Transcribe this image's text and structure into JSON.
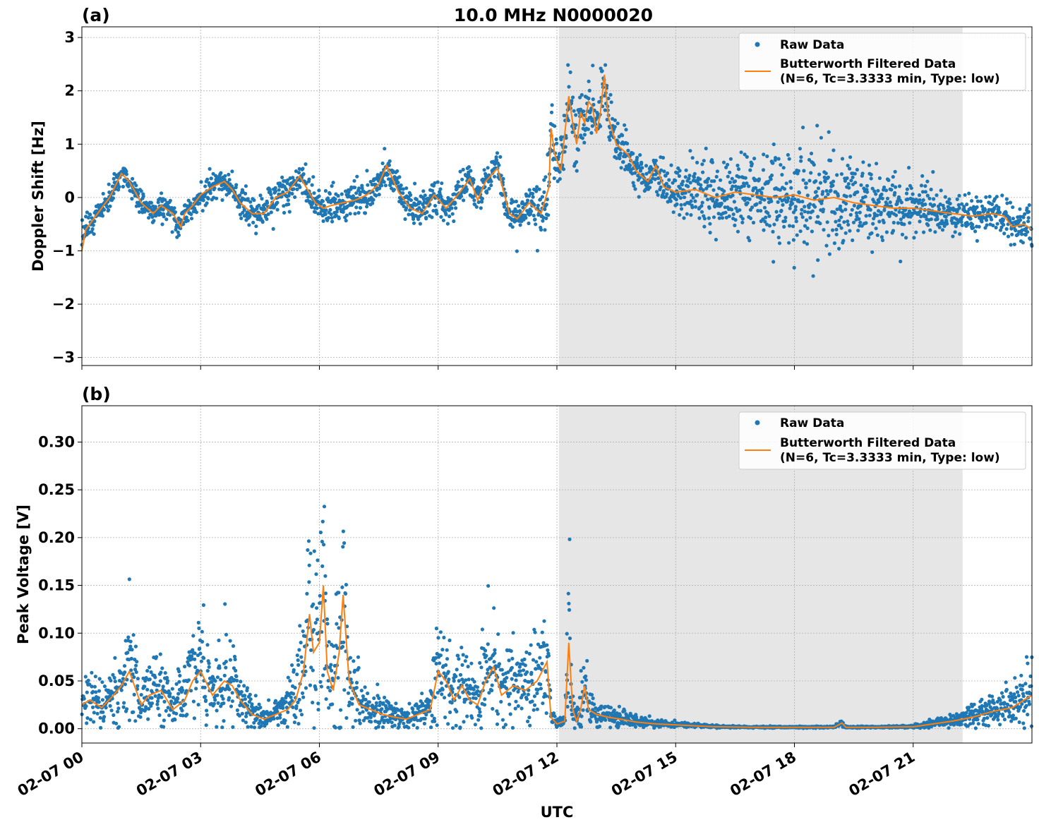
{
  "figure": {
    "title": "10.0 MHz N0000020",
    "xlabel": "UTC",
    "x_ticks": [
      "02-07 00",
      "02-07 03",
      "02-07 06",
      "02-07 09",
      "02-07 12",
      "02-07 15",
      "02-07 18",
      "02-07 21"
    ]
  },
  "colors": {
    "raw": "#1f77b4",
    "filtered": "#ff7f0e",
    "shade": "#e6e6e6",
    "grid": "#b0b0b0"
  },
  "chart_data": [
    {
      "panel_label": "(a)",
      "type": "scatter",
      "ylabel": "Doppler Shift [Hz]",
      "ylim": [
        -3.15,
        3.2
      ],
      "xlim_hours": [
        0,
        24
      ],
      "y_ticks": [
        -3,
        -2,
        -1,
        0,
        1,
        2,
        3
      ],
      "y_tick_labels": [
        "−3",
        "−2",
        "−1",
        "0",
        "1",
        "2",
        "3"
      ],
      "shaded_span_hours": [
        12.05,
        22.25
      ],
      "grid": true,
      "legend_placement": "top-right",
      "legend": [
        "Raw Data",
        "Butterworth Filtered Data",
        "(N=6, Tc=3.3333 min, Type: low)"
      ],
      "series": [
        {
          "name": "Butterworth Filtered Data",
          "kind": "line",
          "x_hours": [
            0,
            0.1,
            0.3,
            0.5,
            0.7,
            0.9,
            1.0,
            1.2,
            1.5,
            1.8,
            2.0,
            2.3,
            2.5,
            2.6,
            2.8,
            3.0,
            3.3,
            3.6,
            3.8,
            4.0,
            4.3,
            4.6,
            4.9,
            5.2,
            5.5,
            5.7,
            5.9,
            6.1,
            6.3,
            6.6,
            6.9,
            7.2,
            7.5,
            7.7,
            8.0,
            8.3,
            8.6,
            8.9,
            9.2,
            9.5,
            9.8,
            10.0,
            10.2,
            10.5,
            10.8,
            11.0,
            11.3,
            11.6,
            11.8,
            11.85,
            11.95,
            12.0,
            12.1,
            12.2,
            12.3,
            12.4,
            12.5,
            12.6,
            12.7,
            12.8,
            12.9,
            13.0,
            13.1,
            13.2,
            13.3,
            13.5,
            13.8,
            14.0,
            14.3,
            14.5,
            14.7,
            15.0,
            15.5,
            16.0,
            16.5,
            17.0,
            17.5,
            18.0,
            18.5,
            19.0,
            19.5,
            20.0,
            20.5,
            21.0,
            21.5,
            22.0,
            22.5,
            23.0,
            23.3,
            23.5,
            23.8,
            24.0
          ],
          "values": [
            -1.0,
            -0.6,
            -0.4,
            -0.2,
            0.0,
            0.3,
            0.45,
            0.3,
            -0.1,
            -0.3,
            -0.15,
            -0.3,
            -0.55,
            -0.3,
            -0.15,
            0.05,
            0.2,
            0.3,
            0.15,
            -0.1,
            -0.3,
            -0.3,
            0.0,
            0.1,
            0.4,
            0.15,
            -0.1,
            -0.2,
            -0.15,
            -0.1,
            -0.05,
            0.05,
            0.25,
            0.6,
            0.1,
            -0.2,
            -0.3,
            0.05,
            -0.2,
            0.05,
            0.35,
            -0.05,
            0.3,
            0.55,
            -0.3,
            -0.4,
            -0.1,
            -0.3,
            0.2,
            1.3,
            0.8,
            0.7,
            0.5,
            1.2,
            1.9,
            1.4,
            1.0,
            1.6,
            1.4,
            1.8,
            1.7,
            1.2,
            1.6,
            2.3,
            1.5,
            1.0,
            0.8,
            0.5,
            0.3,
            0.6,
            0.2,
            0.1,
            0.15,
            0.0,
            0.1,
            0.05,
            0.0,
            0.05,
            -0.05,
            0.0,
            -0.1,
            -0.15,
            -0.2,
            -0.2,
            -0.25,
            -0.3,
            -0.35,
            -0.3,
            -0.35,
            -0.55,
            -0.5,
            -0.6
          ]
        },
        {
          "name": "Raw Data",
          "kind": "scatter",
          "spread_x_hours": [
            0,
            0.3,
            2.0,
            5.5,
            8.0,
            11.0,
            11.8,
            12.3,
            13.2,
            14.0,
            15.0,
            16.5,
            18.0,
            19.0,
            20.0,
            21.0,
            22.0,
            23.0,
            24.0
          ],
          "spread_values": [
            0.35,
            0.2,
            0.22,
            0.3,
            0.3,
            0.25,
            0.55,
            0.45,
            0.45,
            0.35,
            0.4,
            0.75,
            0.9,
            0.85,
            0.65,
            0.45,
            0.3,
            0.3,
            0.35
          ]
        }
      ]
    },
    {
      "panel_label": "(b)",
      "type": "scatter",
      "ylabel": "Peak Voltage [V]",
      "ylim": [
        -0.015,
        0.338
      ],
      "xlim_hours": [
        0,
        24
      ],
      "y_ticks": [
        0.0,
        0.05,
        0.1,
        0.15,
        0.2,
        0.25,
        0.3
      ],
      "y_tick_labels": [
        "0.00",
        "0.05",
        "0.10",
        "0.15",
        "0.20",
        "0.25",
        "0.30"
      ],
      "shaded_span_hours": [
        12.05,
        22.25
      ],
      "grid": true,
      "legend_placement": "top-right",
      "legend": [
        "Raw Data",
        "Butterworth Filtered Data",
        "(N=6, Tc=3.3333 min, Type: low)"
      ],
      "series": [
        {
          "name": "Butterworth Filtered Data",
          "kind": "line",
          "x_hours": [
            0,
            0.2,
            0.5,
            0.8,
            1.0,
            1.2,
            1.5,
            1.7,
            2.0,
            2.3,
            2.6,
            2.8,
            3.0,
            3.3,
            3.6,
            3.8,
            4.0,
            4.3,
            4.6,
            4.9,
            5.2,
            5.4,
            5.6,
            5.75,
            5.85,
            6.0,
            6.1,
            6.2,
            6.35,
            6.5,
            6.6,
            6.75,
            7.0,
            7.3,
            7.6,
            7.9,
            8.2,
            8.5,
            8.8,
            9.0,
            9.2,
            9.4,
            9.6,
            9.8,
            10.0,
            10.2,
            10.4,
            10.6,
            10.9,
            11.2,
            11.5,
            11.75,
            11.85,
            12.0,
            12.2,
            12.3,
            12.4,
            12.5,
            12.6,
            12.7,
            12.8,
            13.0,
            13.3,
            13.6,
            14.0,
            14.5,
            15.0,
            15.5,
            16.0,
            17.0,
            18.0,
            19.0,
            19.2,
            19.3,
            20.0,
            21.0,
            22.0,
            22.5,
            23.0,
            23.5,
            23.8,
            24.0
          ],
          "values": [
            0.025,
            0.03,
            0.022,
            0.035,
            0.045,
            0.06,
            0.025,
            0.035,
            0.04,
            0.02,
            0.03,
            0.05,
            0.06,
            0.035,
            0.05,
            0.045,
            0.03,
            0.015,
            0.01,
            0.015,
            0.02,
            0.03,
            0.06,
            0.12,
            0.08,
            0.09,
            0.15,
            0.06,
            0.04,
            0.08,
            0.14,
            0.05,
            0.025,
            0.02,
            0.015,
            0.012,
            0.01,
            0.015,
            0.02,
            0.06,
            0.05,
            0.03,
            0.045,
            0.03,
            0.025,
            0.05,
            0.065,
            0.035,
            0.045,
            0.04,
            0.05,
            0.07,
            0.012,
            0.005,
            0.008,
            0.09,
            0.02,
            0.008,
            0.02,
            0.045,
            0.02,
            0.015,
            0.012,
            0.01,
            0.007,
            0.005,
            0.004,
            0.003,
            0.002,
            0.0015,
            0.0015,
            0.0015,
            0.006,
            0.0015,
            0.0015,
            0.002,
            0.008,
            0.012,
            0.018,
            0.022,
            0.03,
            0.035
          ]
        },
        {
          "name": "Raw Data",
          "kind": "scatter",
          "spread_x_hours": [
            0,
            5.5,
            6.2,
            7.0,
            11.8,
            12.3,
            14.0,
            15.0,
            16.0,
            17.0,
            20.0,
            22.0,
            24.0
          ],
          "spread_values": [
            0.55,
            0.6,
            0.7,
            0.6,
            0.5,
            0.6,
            0.5,
            0.35,
            0.3,
            0.25,
            0.3,
            0.45,
            0.55
          ]
        }
      ]
    }
  ]
}
